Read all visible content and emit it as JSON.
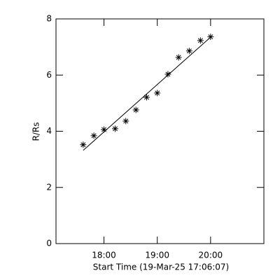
{
  "chart_data": {
    "type": "scatter",
    "xlabel": "Start Time (19-Mar-25 17:06:07)",
    "ylabel": "R/Rs",
    "xlim": [
      17.1,
      21.0
    ],
    "ylim": [
      0,
      8
    ],
    "xticks": [
      {
        "value": 18,
        "label": "18:00"
      },
      {
        "value": 19,
        "label": "19:00"
      },
      {
        "value": 20,
        "label": "20:00"
      }
    ],
    "yticks": [
      0,
      2,
      4,
      6,
      8
    ],
    "series": [
      {
        "marker": "asterisk",
        "color": "#000000",
        "x": [
          17.61,
          17.81,
          18.0,
          18.21,
          18.41,
          18.6,
          18.8,
          19.0,
          19.2,
          19.4,
          19.6,
          19.81,
          20.0
        ],
        "values": [
          3.52,
          3.84,
          4.06,
          4.09,
          4.36,
          4.76,
          5.21,
          5.36,
          6.03,
          6.63,
          6.86,
          7.23,
          7.36
        ]
      },
      {
        "marker": "line",
        "color": "#000000",
        "x": [
          17.61,
          20.0
        ],
        "values": [
          3.32,
          7.35
        ]
      }
    ]
  }
}
